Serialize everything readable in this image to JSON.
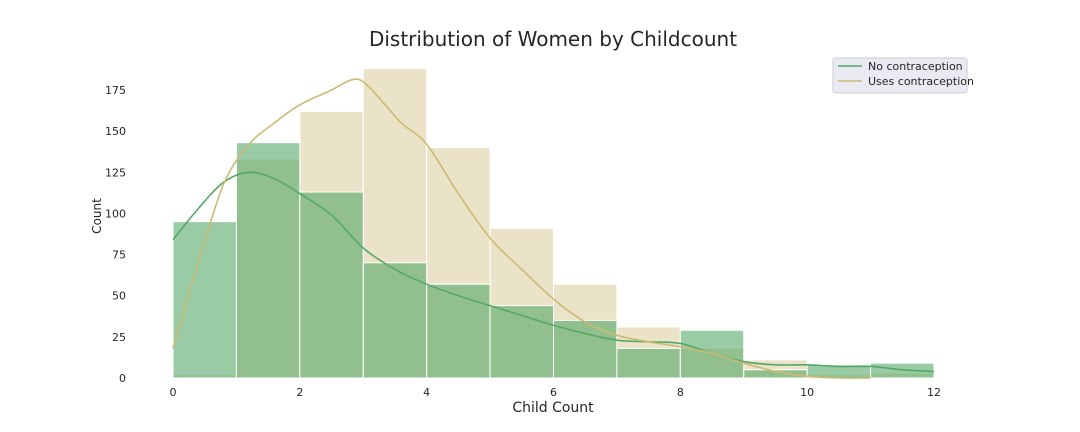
{
  "chart_data": {
    "type": "histogram",
    "title": "Distribution of Women by Childcount",
    "xlabel": "Child Count",
    "ylabel": "Count",
    "xlim": [
      0,
      12
    ],
    "ylim": [
      0,
      190
    ],
    "xticks": [
      0,
      2,
      4,
      6,
      8,
      10,
      12
    ],
    "yticks": [
      0,
      25,
      50,
      75,
      100,
      125,
      150,
      175
    ],
    "grid": false,
    "legend_position": "top-right",
    "bin_width": 1,
    "bin_starts": [
      0,
      1,
      2,
      3,
      4,
      5,
      6,
      7,
      8,
      9,
      10,
      11
    ],
    "series": [
      {
        "name": "No contraception",
        "color": "#55a868",
        "counts": [
          95,
          143,
          113,
          70,
          57,
          44,
          35,
          18,
          29,
          5,
          8,
          9
        ],
        "kde": [
          [
            0,
            84
          ],
          [
            0.4,
            103
          ],
          [
            0.8,
            119
          ],
          [
            1.2,
            125
          ],
          [
            1.6,
            121
          ],
          [
            2.0,
            112
          ],
          [
            2.5,
            99
          ],
          [
            3.0,
            79
          ],
          [
            3.5,
            66
          ],
          [
            4.0,
            57
          ],
          [
            4.5,
            50
          ],
          [
            5.0,
            44
          ],
          [
            5.5,
            38
          ],
          [
            6.0,
            32
          ],
          [
            6.5,
            27
          ],
          [
            7.0,
            23
          ],
          [
            7.5,
            22
          ],
          [
            8.0,
            21
          ],
          [
            8.5,
            15
          ],
          [
            9.0,
            10
          ],
          [
            9.5,
            8
          ],
          [
            10.0,
            8
          ],
          [
            10.5,
            7
          ],
          [
            11.0,
            7
          ],
          [
            11.5,
            5
          ],
          [
            12.0,
            4
          ]
        ]
      },
      {
        "name": "Uses contraception",
        "color": "#ccb974",
        "counts": [
          2,
          133,
          162,
          188,
          140,
          91,
          57,
          31,
          18,
          11,
          2,
          3
        ],
        "kde": [
          [
            0,
            18
          ],
          [
            0.4,
            70
          ],
          [
            0.8,
            118
          ],
          [
            1.2,
            142
          ],
          [
            1.6,
            155
          ],
          [
            2.0,
            166
          ],
          [
            2.5,
            175
          ],
          [
            2.8,
            181
          ],
          [
            3.0,
            180
          ],
          [
            3.3,
            168
          ],
          [
            3.6,
            155
          ],
          [
            4.0,
            142
          ],
          [
            4.5,
            112
          ],
          [
            5.0,
            85
          ],
          [
            5.5,
            66
          ],
          [
            6.0,
            48
          ],
          [
            6.5,
            34
          ],
          [
            7.0,
            26
          ],
          [
            7.5,
            22
          ],
          [
            8.0,
            19
          ],
          [
            8.5,
            15
          ],
          [
            9.0,
            9
          ],
          [
            9.5,
            4
          ],
          [
            10.0,
            1
          ],
          [
            10.5,
            0
          ],
          [
            11.0,
            0
          ]
        ]
      }
    ]
  }
}
